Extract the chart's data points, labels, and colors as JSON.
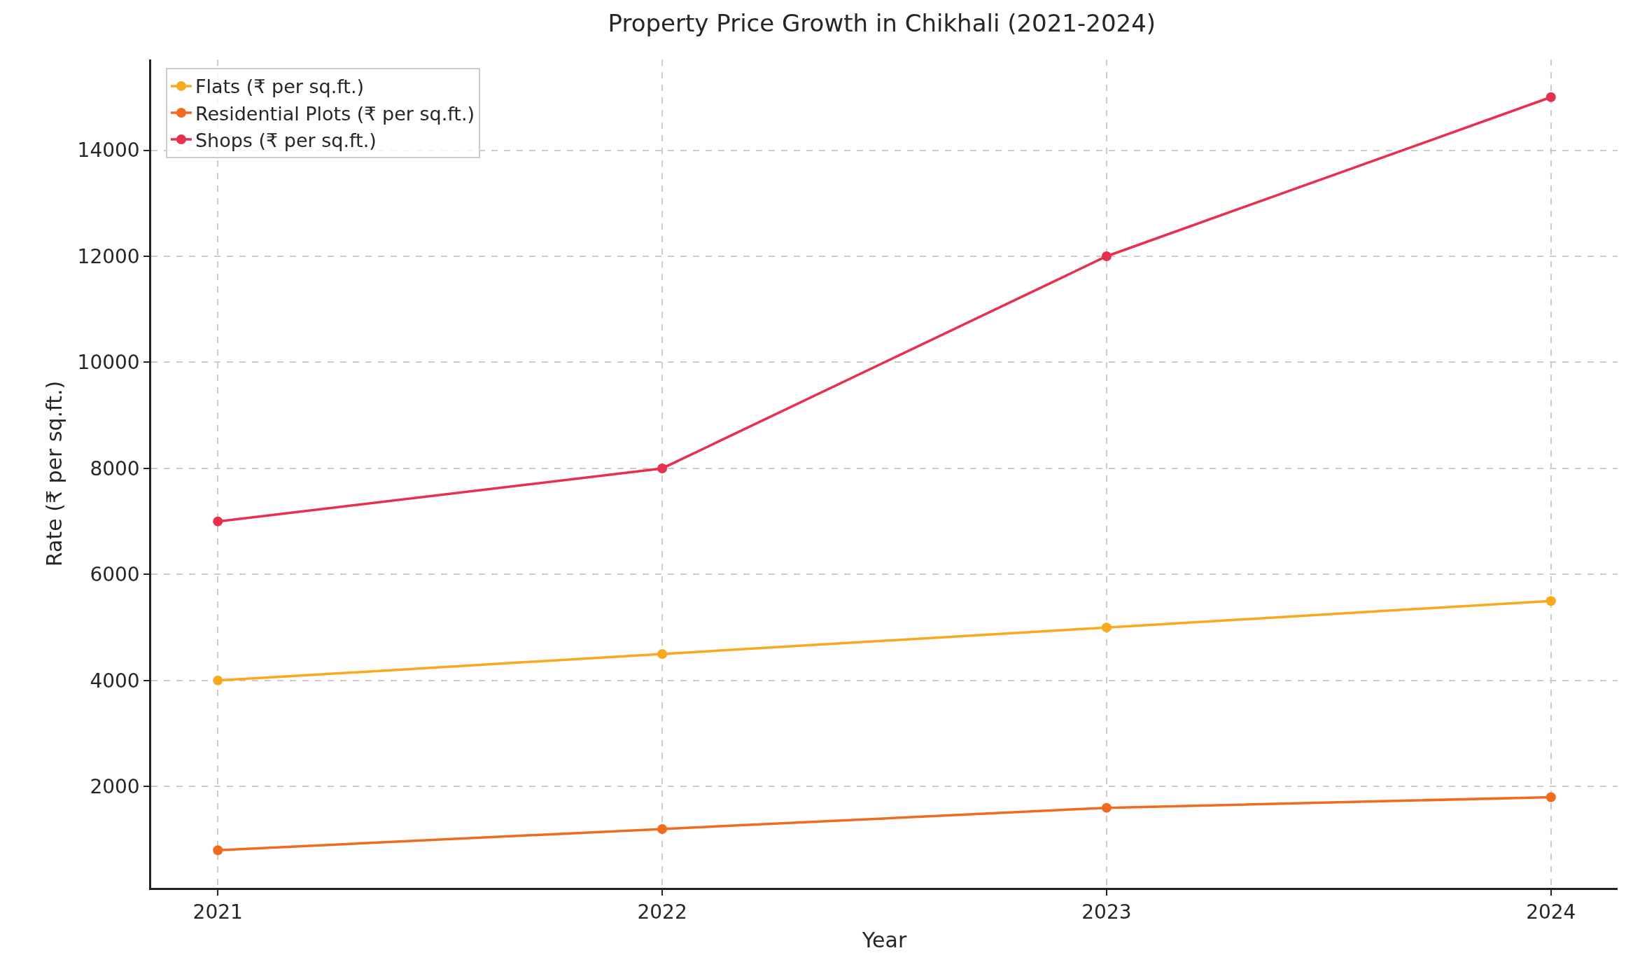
{
  "chart_data": {
    "type": "line",
    "title": "Property Price Growth in Chikhali (2021-2024)",
    "xlabel": "Year",
    "ylabel": "Rate (₹ per sq.ft.)",
    "x": [
      2021,
      2022,
      2023,
      2024
    ],
    "series": [
      {
        "name": "Flats (₹ per sq.ft.)",
        "color": "#f9a91b",
        "values": [
          4000,
          4500,
          5000,
          5500
        ]
      },
      {
        "name": "Residential Plots (₹ per sq.ft.)",
        "color": "#f26b1d",
        "values": [
          800,
          1200,
          1600,
          1800
        ]
      },
      {
        "name": "Shops (₹ per sq.ft.)",
        "color": "#ea2e4e",
        "values": [
          7000,
          8000,
          12000,
          15000
        ]
      }
    ],
    "xlim": [
      2020.85,
      2024.15
    ],
    "xticks": [
      2021,
      2022,
      2023,
      2024
    ],
    "ylim": [
      90,
      15710
    ],
    "yticks": [
      2000,
      4000,
      6000,
      8000,
      10000,
      12000,
      14000
    ],
    "grid": true,
    "legend": "top left",
    "marker": "circle",
    "line_style": "solid"
  }
}
